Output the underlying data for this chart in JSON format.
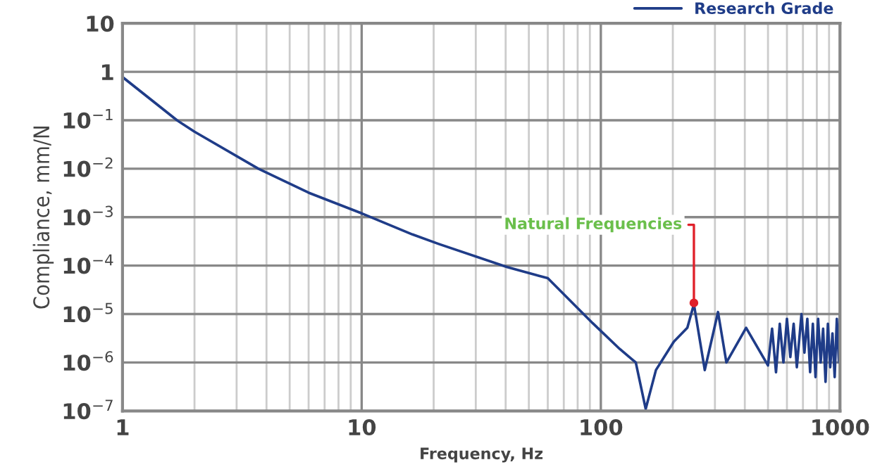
{
  "chart_data": {
    "type": "line",
    "xlabel": "Frequency, Hz",
    "ylabel": "Compliance, mm/N",
    "log": "xy",
    "grid": true,
    "legend": "top right",
    "line_style": "solid",
    "marker": "none",
    "xlim": [
      1,
      1000
    ],
    "ylim": [
      1e-07,
      10
    ],
    "xticks": [
      1,
      10,
      100,
      1000
    ],
    "yticks": [
      {
        "value": 1e-07,
        "label": "10$^{−7}$"
      },
      {
        "value": 1e-06,
        "label": "10$^{−6}$"
      },
      {
        "value": 1e-05,
        "label": "10$^{−5}$"
      },
      {
        "value": 0.0001,
        "label": "10$^{−4}$"
      },
      {
        "value": 0.001,
        "label": "10$^{−3}$"
      },
      {
        "value": 0.01,
        "label": "10$^{−2}$"
      },
      {
        "value": 0.1,
        "label": "10$^{−1}$"
      },
      1,
      10
    ],
    "annotations": [
      {
        "text": "Natural Frequencies",
        "x": 245,
        "y": 1.7e-05
      }
    ],
    "series": [
      {
        "name": "Research Grade",
        "color": "#1f3c88",
        "x": [
          1,
          1.69,
          2,
          3.7,
          6,
          10,
          16.3,
          21,
          40.6,
          60,
          92.4,
          120,
          140,
          154,
          170,
          202,
          230,
          245,
          272,
          309,
          335,
          405,
          500,
          520,
          540,
          560,
          580,
          600,
          620,
          640,
          660,
          690,
          710,
          730,
          750,
          770,
          790,
          810,
          830,
          850,
          870,
          890,
          910,
          930,
          950,
          970,
          990,
          1000
        ],
        "values": [
          0.78,
          0.1,
          0.058,
          0.01,
          0.0032,
          0.0012,
          0.00044,
          0.00028,
          9.3e-05,
          5.5e-05,
          6.5e-06,
          1.9e-06,
          1e-06,
          1.1e-07,
          7e-07,
          2.7e-06,
          5.2e-06,
          1.6e-05,
          7e-07,
          1.1e-05,
          1e-06,
          5.2e-06,
          8.7e-07,
          5e-06,
          6.3e-07,
          6.3e-06,
          1e-06,
          8e-06,
          1.3e-06,
          6.3e-06,
          8e-07,
          1e-05,
          1.6e-06,
          8e-06,
          6.3e-07,
          6.3e-06,
          5e-07,
          8e-06,
          1e-06,
          5e-06,
          4e-07,
          6.3e-06,
          8e-07,
          4e-06,
          5e-07,
          8e-06,
          1e-06,
          1e-05
        ]
      }
    ]
  }
}
